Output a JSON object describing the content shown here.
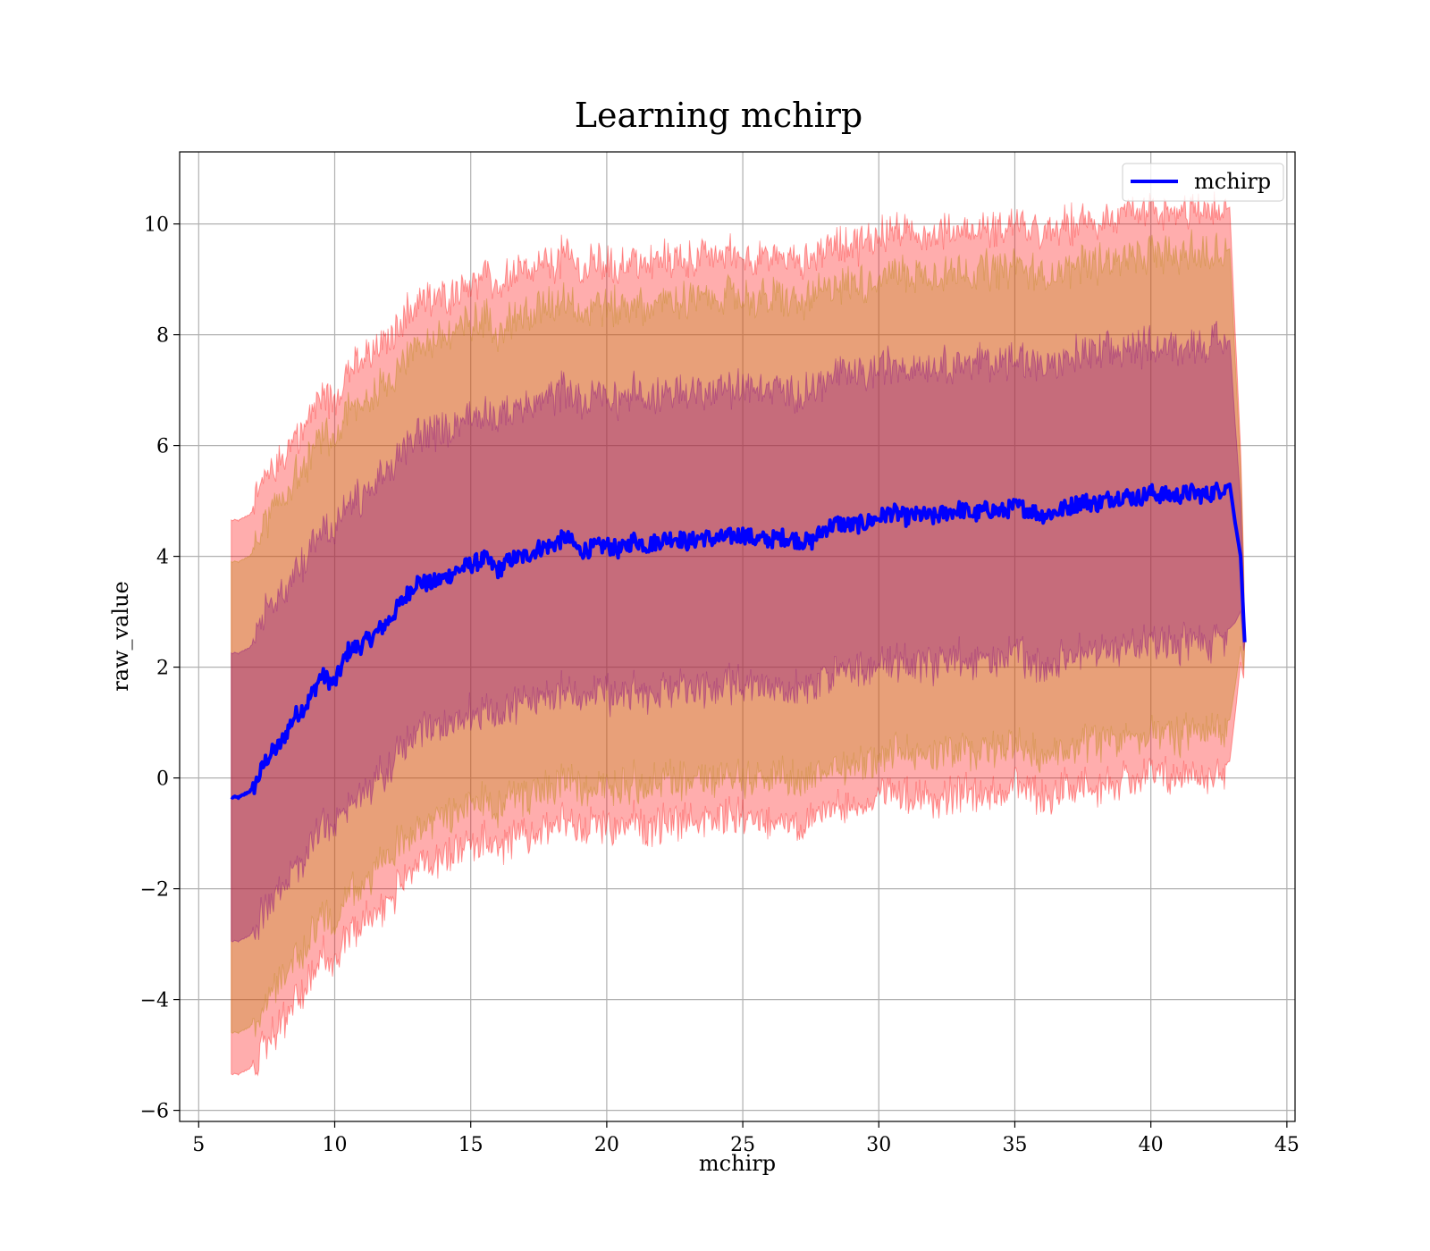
{
  "chart_data": {
    "type": "area",
    "title": "Learning mchirp",
    "xlabel": "mchirp",
    "ylabel": "raw_value",
    "xlim": [
      4.3,
      45.3
    ],
    "ylim": [
      -6.2,
      11.3
    ],
    "x_ticks": [
      5,
      10,
      15,
      20,
      25,
      30,
      35,
      40,
      45
    ],
    "y_ticks": [
      -6,
      -4,
      -2,
      0,
      2,
      4,
      6,
      8,
      10
    ],
    "x_tick_labels": [
      "5",
      "10",
      "15",
      "20",
      "25",
      "30",
      "35",
      "40",
      "45"
    ],
    "y_tick_labels": [
      "−6",
      "−4",
      "−2",
      "0",
      "2",
      "4",
      "6",
      "8",
      "10"
    ],
    "grid": true,
    "legend": {
      "placement": "top-right",
      "entries": [
        "mchirp"
      ]
    },
    "colors": {
      "mean_line": "#0000ff",
      "band_3sigma": "#ff0000",
      "band_2sigma": "#b8860b",
      "band_1sigma": "#800080"
    },
    "band_half_widths": [
      2.6,
      4.25,
      5.0
    ],
    "x": [
      6.2,
      6.5,
      7.0,
      7.5,
      8.0,
      8.5,
      9.0,
      9.5,
      10.0,
      10.5,
      11.0,
      11.5,
      12.0,
      12.5,
      13.0,
      13.5,
      14.0,
      14.5,
      15.0,
      15.5,
      16.0,
      16.5,
      17.0,
      17.5,
      18.0,
      18.5,
      19.0,
      19.5,
      20.0,
      20.5,
      21.0,
      21.5,
      22.0,
      22.5,
      23.0,
      23.5,
      24.0,
      24.5,
      25.0,
      25.5,
      26.0,
      26.5,
      27.0,
      27.5,
      28.0,
      28.5,
      29.0,
      29.5,
      30.0,
      30.5,
      31.0,
      31.5,
      32.0,
      32.5,
      33.0,
      33.5,
      34.0,
      34.5,
      35.0,
      35.5,
      36.0,
      36.5,
      37.0,
      37.5,
      38.0,
      38.5,
      39.0,
      39.5,
      40.0,
      40.5,
      41.0,
      41.5,
      42.0,
      42.5,
      42.9,
      43.1,
      43.3,
      43.45
    ],
    "mean": [
      -0.35,
      -0.35,
      -0.2,
      0.35,
      0.6,
      1.1,
      1.35,
      1.85,
      1.7,
      2.3,
      2.4,
      2.6,
      2.85,
      3.2,
      3.55,
      3.5,
      3.6,
      3.75,
      3.85,
      3.95,
      3.75,
      3.95,
      4.0,
      4.15,
      4.2,
      4.35,
      4.1,
      4.15,
      4.2,
      4.1,
      4.3,
      4.2,
      4.3,
      4.35,
      4.25,
      4.35,
      4.3,
      4.35,
      4.4,
      4.3,
      4.3,
      4.35,
      4.3,
      4.25,
      4.5,
      4.6,
      4.55,
      4.6,
      4.7,
      4.8,
      4.7,
      4.75,
      4.7,
      4.8,
      4.85,
      4.75,
      4.85,
      4.8,
      4.9,
      4.85,
      4.75,
      4.8,
      4.9,
      5.0,
      4.95,
      5.05,
      5.1,
      5.05,
      5.15,
      5.1,
      5.1,
      5.15,
      5.1,
      5.2,
      5.3,
      4.6,
      4.0,
      2.45
    ]
  }
}
